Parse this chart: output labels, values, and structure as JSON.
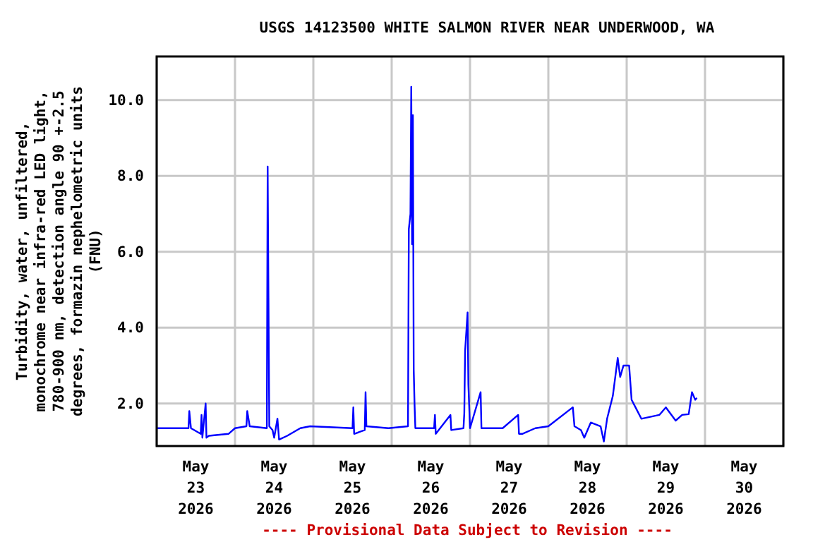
{
  "chart_data": {
    "type": "line",
    "title": "USGS 14123500 WHITE SALMON RIVER NEAR UNDERWOOD, WA",
    "ylabel": "Turbidity, water, unfiltered,\nmonochrome near infra-red LED light,\n780-900 nm, detection angle 90 +-2.5\ndegrees, formazin nephelometric units\n(FNU)",
    "annotations": [
      "---- Provisional Data Subject to Revision ----"
    ],
    "grid": true,
    "marker": "none",
    "line_style": "solid",
    "xlim": [
      "2026-05-23T00:00",
      "2026-05-31T00:00"
    ],
    "xticks": [
      {
        "value": "2026-05-23T00:00",
        "label": null
      },
      {
        "value": "2026-05-23T12:00",
        "label": "May\n23\n2026"
      },
      {
        "value": "2026-05-24T00:00",
        "label": null
      },
      {
        "value": "2026-05-24T12:00",
        "label": "May\n24\n2026"
      },
      {
        "value": "2026-05-25T00:00",
        "label": null
      },
      {
        "value": "2026-05-25T12:00",
        "label": "May\n25\n2026"
      },
      {
        "value": "2026-05-26T00:00",
        "label": null
      },
      {
        "value": "2026-05-26T12:00",
        "label": "May\n26\n2026"
      },
      {
        "value": "2026-05-27T00:00",
        "label": null
      },
      {
        "value": "2026-05-27T12:00",
        "label": "May\n27\n2026"
      },
      {
        "value": "2026-05-28T00:00",
        "label": null
      },
      {
        "value": "2026-05-28T12:00",
        "label": "May\n28\n2026"
      },
      {
        "value": "2026-05-29T00:00",
        "label": null
      },
      {
        "value": "2026-05-29T12:00",
        "label": "May\n29\n2026"
      },
      {
        "value": "2026-05-30T00:00",
        "label": null
      },
      {
        "value": "2026-05-30T12:00",
        "label": "May\n30\n2026"
      },
      {
        "value": "2026-05-31T00:00",
        "label": null
      }
    ],
    "ylim": [
      0.88,
      11.15
    ],
    "yticks": [
      {
        "value": 2,
        "label": "2.0"
      },
      {
        "value": 4,
        "label": "4.0"
      },
      {
        "value": 6,
        "label": "6.0"
      },
      {
        "value": 8,
        "label": "8.0"
      },
      {
        "value": 10,
        "label": "10.0"
      }
    ],
    "x": [
      "2026-05-23T00:00",
      "2026-05-23T08:00",
      "2026-05-23T09:45",
      "2026-05-23T10:00",
      "2026-05-23T10:30",
      "2026-05-23T13:30",
      "2026-05-23T13:45",
      "2026-05-23T14:00",
      "2026-05-23T15:00",
      "2026-05-23T15:15",
      "2026-05-23T16:00",
      "2026-05-23T22:00",
      "2026-05-24T00:00",
      "2026-05-24T03:30",
      "2026-05-24T03:45",
      "2026-05-24T04:30",
      "2026-05-24T09:45",
      "2026-05-24T10:00",
      "2026-05-24T10:15",
      "2026-05-24T10:30",
      "2026-05-24T11:30",
      "2026-05-24T12:00",
      "2026-05-24T13:00",
      "2026-05-24T13:30",
      "2026-05-24T16:00",
      "2026-05-24T20:00",
      "2026-05-24T23:00",
      "2026-05-25T12:00",
      "2026-05-25T12:15",
      "2026-05-25T12:30",
      "2026-05-25T15:45",
      "2026-05-25T16:00",
      "2026-05-25T16:15",
      "2026-05-25T23:00",
      "2026-05-26T05:00",
      "2026-05-26T05:15",
      "2026-05-26T05:45",
      "2026-05-26T06:00",
      "2026-05-26T06:15",
      "2026-05-26T06:30",
      "2026-05-26T06:45",
      "2026-05-26T07:00",
      "2026-05-26T07:15",
      "2026-05-26T13:00",
      "2026-05-26T13:15",
      "2026-05-26T13:30",
      "2026-05-26T18:00",
      "2026-05-26T18:15",
      "2026-05-26T22:00",
      "2026-05-26T22:15",
      "2026-05-26T22:30",
      "2026-05-26T23:15",
      "2026-05-26T23:30",
      "2026-05-27T00:00",
      "2026-05-27T03:15",
      "2026-05-27T03:30",
      "2026-05-27T10:00",
      "2026-05-27T14:45",
      "2026-05-27T15:00",
      "2026-05-27T16:00",
      "2026-05-27T20:00",
      "2026-05-28T00:00",
      "2026-05-28T07:30",
      "2026-05-28T08:00",
      "2026-05-28T10:00",
      "2026-05-28T11:00",
      "2026-05-28T13:00",
      "2026-05-28T16:00",
      "2026-05-28T17:00",
      "2026-05-28T18:00",
      "2026-05-28T19:45",
      "2026-05-28T21:15",
      "2026-05-28T22:00",
      "2026-05-28T23:00",
      "2026-05-29T00:45",
      "2026-05-29T01:30",
      "2026-05-29T03:00",
      "2026-05-29T04:30",
      "2026-05-29T10:00",
      "2026-05-29T12:00",
      "2026-05-29T15:00",
      "2026-05-29T17:00",
      "2026-05-29T19:00",
      "2026-05-29T20:00",
      "2026-05-29T21:00",
      "2026-05-29T21:30"
    ],
    "series": [
      {
        "color": "#0000ff",
        "values": [
          1.35,
          1.35,
          1.35,
          1.8,
          1.35,
          1.2,
          1.7,
          1.1,
          2.0,
          1.1,
          1.15,
          1.2,
          1.35,
          1.4,
          1.8,
          1.4,
          1.35,
          8.25,
          4.8,
          1.4,
          1.3,
          1.1,
          1.6,
          1.05,
          1.15,
          1.35,
          1.4,
          1.35,
          1.9,
          1.2,
          1.3,
          2.3,
          1.4,
          1.35,
          1.4,
          6.6,
          7.0,
          10.35,
          6.2,
          9.6,
          2.9,
          2.0,
          1.35,
          1.35,
          1.7,
          1.2,
          1.7,
          1.3,
          1.35,
          1.75,
          3.4,
          4.4,
          2.5,
          1.35,
          2.3,
          1.35,
          1.35,
          1.7,
          1.2,
          1.2,
          1.35,
          1.4,
          1.9,
          1.4,
          1.3,
          1.1,
          1.5,
          1.4,
          1.0,
          1.6,
          2.2,
          3.2,
          2.7,
          3.0,
          3.0,
          2.1,
          1.85,
          1.6,
          1.7,
          1.9,
          1.55,
          1.7,
          1.72,
          2.3,
          2.1,
          2.15
        ]
      }
    ]
  }
}
